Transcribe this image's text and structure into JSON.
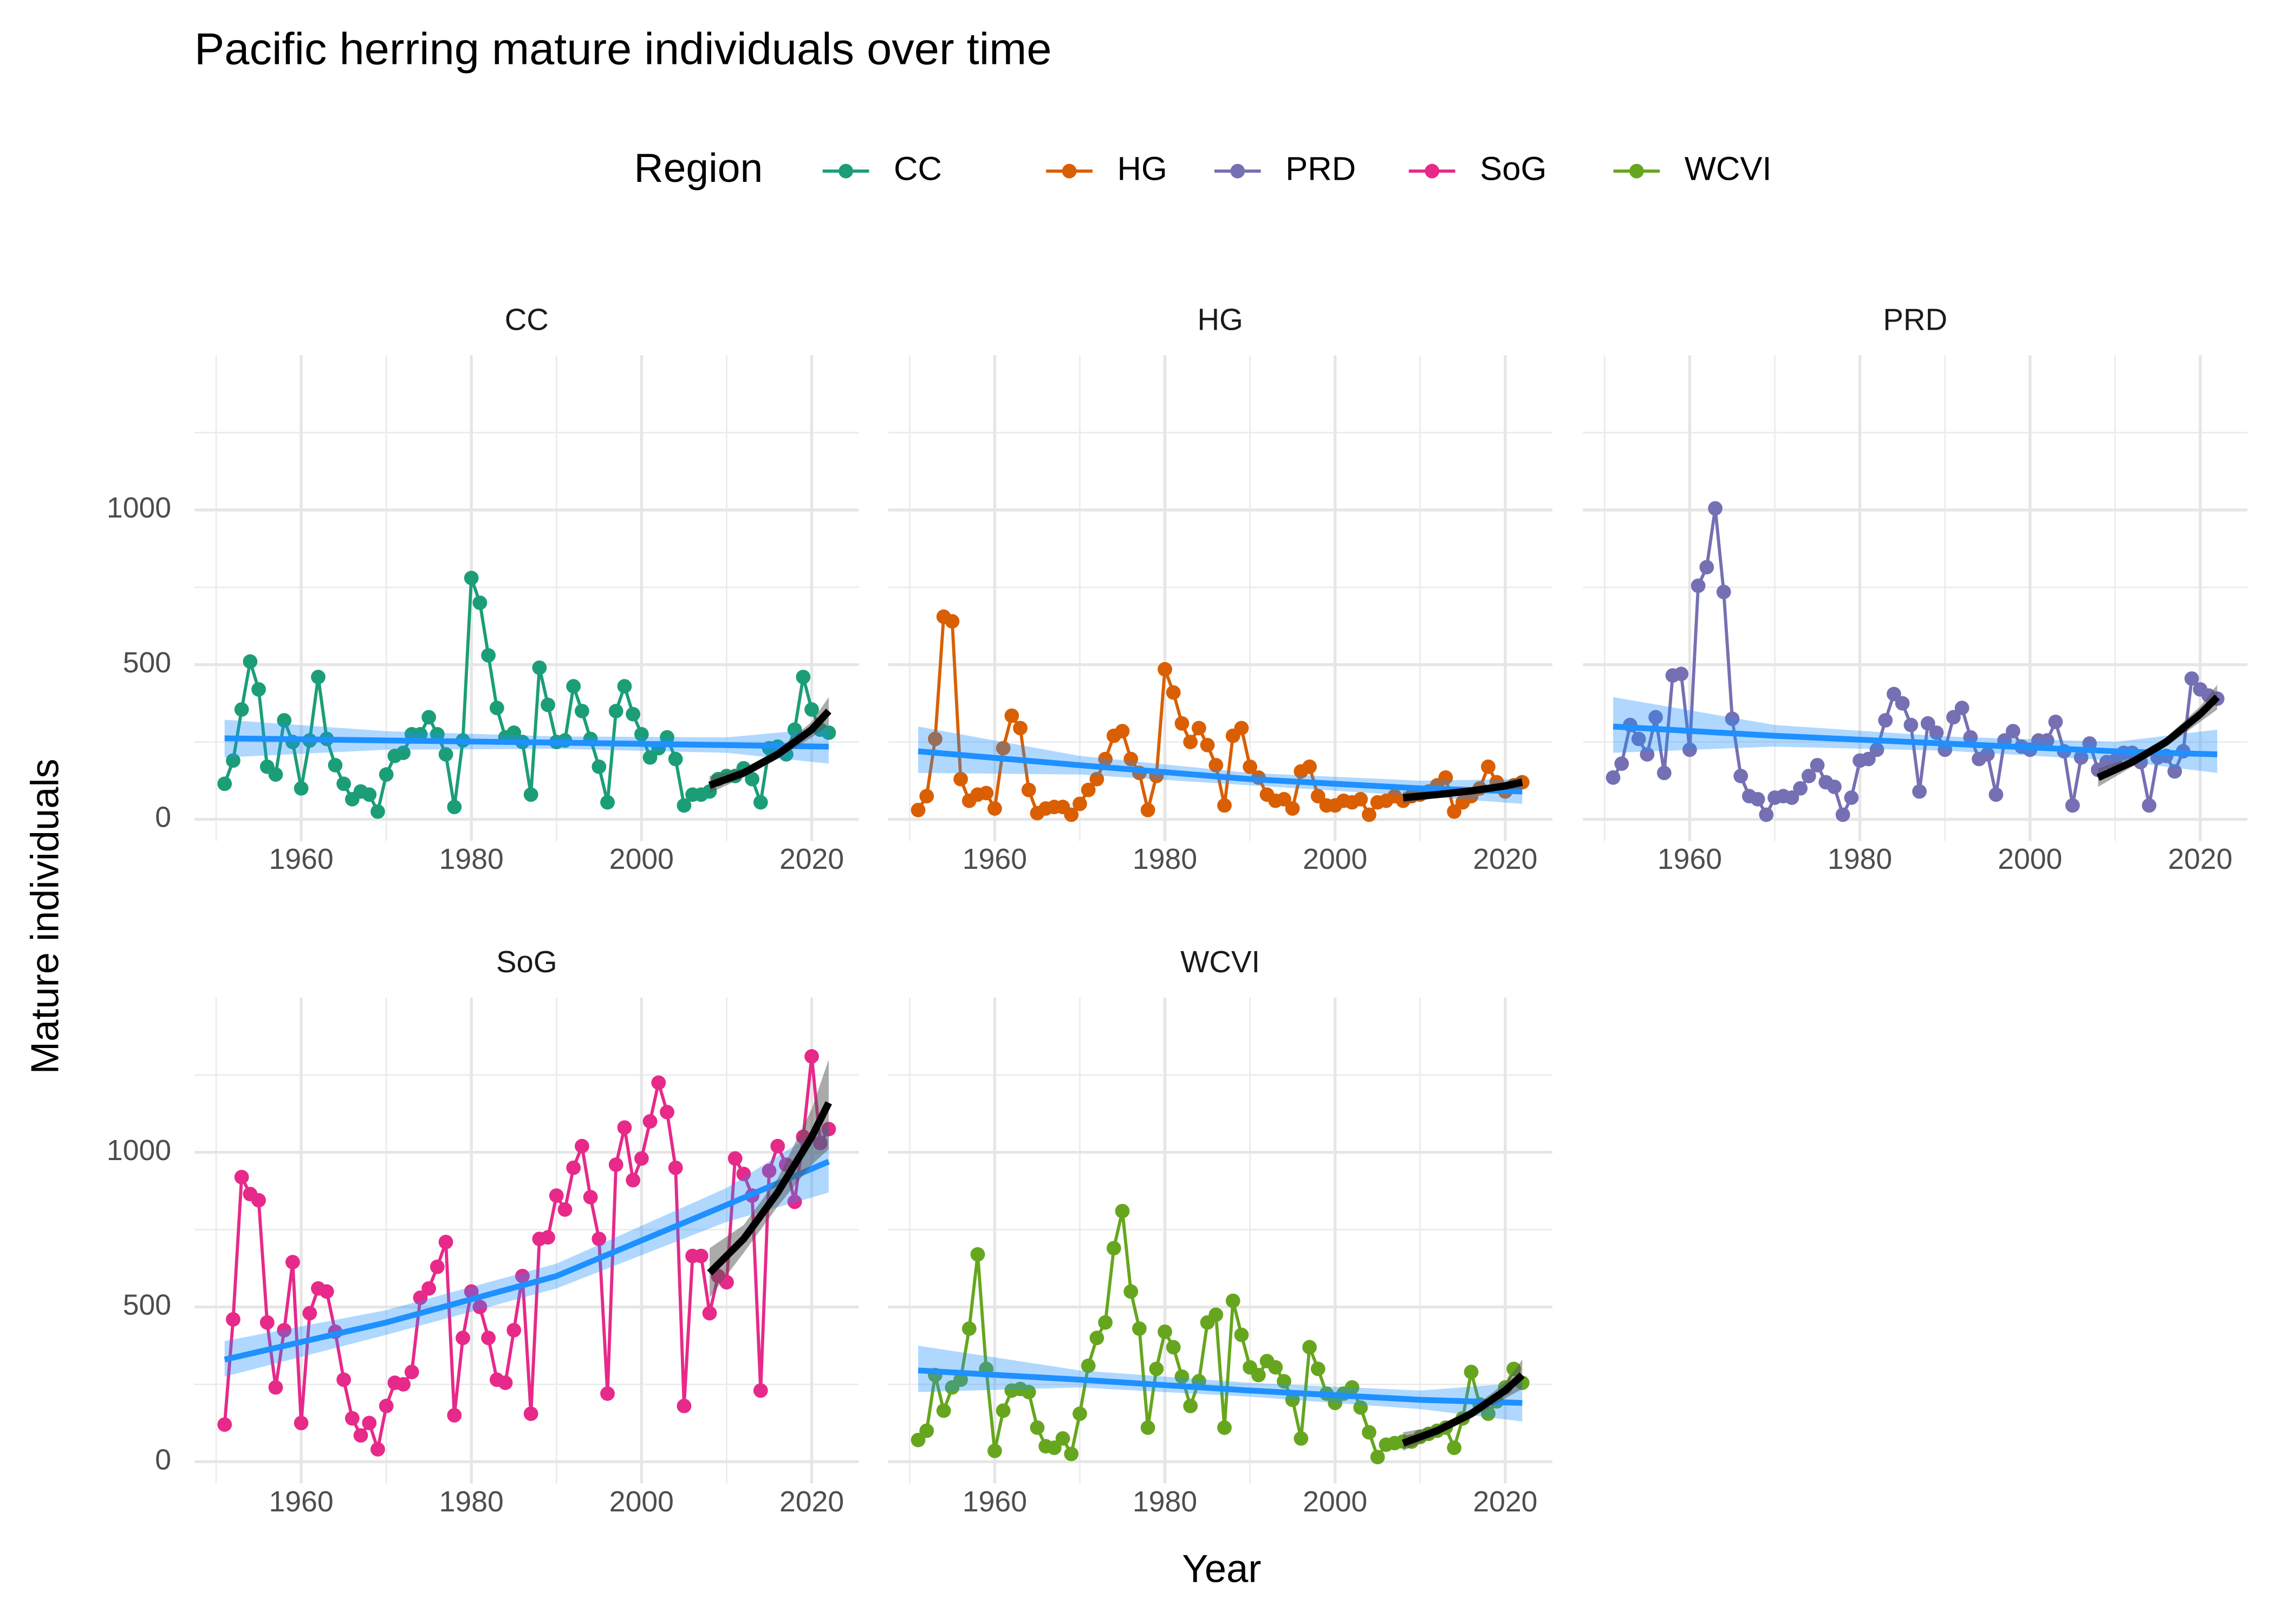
{
  "chart_data": {
    "type": "line",
    "title": "Pacific herring mature individuals over time",
    "x_label": "Year",
    "y_label": "Mature individuals",
    "legend_title": "Region",
    "legend_position": "top",
    "grid": true,
    "xlim": [
      1947.45,
      2025.55
    ],
    "xticks": [
      1960,
      1980,
      2000,
      2020
    ],
    "ylim": [
      -70,
      1500
    ],
    "yticks": [
      0,
      500,
      1000
    ],
    "trend_color": "#1e90ff",
    "recent_trend_color": "#000000",
    "x": [
      1951,
      1952,
      1953,
      1954,
      1955,
      1956,
      1957,
      1958,
      1959,
      1960,
      1961,
      1962,
      1963,
      1964,
      1965,
      1966,
      1967,
      1968,
      1969,
      1970,
      1971,
      1972,
      1973,
      1974,
      1975,
      1976,
      1977,
      1978,
      1979,
      1980,
      1981,
      1982,
      1983,
      1984,
      1985,
      1986,
      1987,
      1988,
      1989,
      1990,
      1991,
      1992,
      1993,
      1994,
      1995,
      1996,
      1997,
      1998,
      1999,
      2000,
      2001,
      2002,
      2003,
      2004,
      2005,
      2006,
      2007,
      2008,
      2009,
      2010,
      2011,
      2012,
      2013,
      2014,
      2015,
      2016,
      2017,
      2018,
      2019,
      2020,
      2021,
      2022
    ],
    "trend_x": [
      1951,
      1970,
      1990,
      2010,
      2022
    ],
    "recent_x": [
      2008,
      2012,
      2016,
      2020,
      2022
    ],
    "series": [
      {
        "name": "CC",
        "color": "#1b9e77",
        "values": [
          115,
          190,
          355,
          510,
          420,
          170,
          145,
          320,
          250,
          100,
          255,
          460,
          260,
          175,
          115,
          65,
          90,
          80,
          25,
          145,
          205,
          215,
          275,
          275,
          330,
          275,
          210,
          40,
          255,
          780,
          700,
          530,
          360,
          265,
          280,
          250,
          80,
          490,
          370,
          250,
          255,
          430,
          350,
          260,
          170,
          55,
          350,
          430,
          340,
          275,
          200,
          230,
          265,
          195,
          45,
          80,
          80,
          90,
          130,
          140,
          140,
          165,
          130,
          55,
          230,
          235,
          210,
          290,
          460,
          355,
          290,
          280
        ],
        "trend": [
          262,
          255,
          248,
          240,
          235
        ],
        "trend_lower": [
          200,
          225,
          228,
          215,
          180
        ],
        "trend_upper": [
          322,
          285,
          268,
          265,
          295
        ],
        "recent": [
          110,
          150,
          210,
          290,
          350
        ],
        "recent_lower": [
          85,
          135,
          195,
          265,
          305
        ],
        "recent_upper": [
          140,
          165,
          225,
          315,
          395
        ]
      },
      {
        "name": "HG",
        "color": "#d95f02",
        "values": [
          30,
          75,
          260,
          655,
          640,
          130,
          60,
          80,
          85,
          35,
          230,
          335,
          295,
          95,
          20,
          35,
          40,
          40,
          15,
          50,
          95,
          130,
          195,
          270,
          285,
          195,
          150,
          30,
          140,
          485,
          410,
          310,
          250,
          295,
          240,
          175,
          45,
          270,
          295,
          170,
          135,
          80,
          60,
          65,
          35,
          155,
          170,
          75,
          45,
          45,
          60,
          55,
          65,
          15,
          55,
          60,
          75,
          60,
          75,
          80,
          90,
          110,
          135,
          25,
          55,
          75,
          100,
          170,
          120,
          90,
          110,
          120
        ],
        "trend": [
          220,
          175,
          130,
          100,
          90
        ],
        "trend_lower": [
          150,
          145,
          110,
          75,
          50
        ],
        "trend_upper": [
          300,
          205,
          150,
          125,
          130
        ],
        "recent": [
          70,
          80,
          92,
          108,
          120
        ],
        "recent_lower": [
          50,
          70,
          85,
          95,
          100
        ],
        "recent_upper": [
          90,
          90,
          100,
          122,
          142
        ]
      },
      {
        "name": "PRD",
        "color": "#7570b3",
        "values": [
          135,
          180,
          305,
          260,
          210,
          330,
          150,
          465,
          470,
          225,
          755,
          815,
          1005,
          735,
          325,
          140,
          75,
          65,
          15,
          70,
          75,
          70,
          100,
          140,
          175,
          120,
          105,
          15,
          70,
          190,
          195,
          225,
          320,
          405,
          375,
          305,
          90,
          310,
          280,
          225,
          330,
          360,
          265,
          195,
          210,
          80,
          255,
          285,
          235,
          225,
          255,
          255,
          315,
          220,
          45,
          200,
          245,
          160,
          185,
          190,
          215,
          215,
          185,
          45,
          200,
          205,
          155,
          220,
          455,
          420,
          400,
          390
        ],
        "trend": [
          300,
          270,
          245,
          220,
          210
        ],
        "trend_lower": [
          215,
          235,
          222,
          190,
          150
        ],
        "trend_upper": [
          395,
          305,
          268,
          250,
          290
        ],
        "recent": [
          135,
          185,
          250,
          340,
          395
        ],
        "recent_lower": [
          105,
          170,
          235,
          315,
          355
        ],
        "recent_upper": [
          165,
          200,
          265,
          365,
          435
        ]
      },
      {
        "name": "SoG",
        "color": "#e7298a",
        "values": [
          120,
          460,
          920,
          865,
          845,
          450,
          240,
          425,
          645,
          125,
          480,
          560,
          550,
          420,
          265,
          140,
          85,
          125,
          40,
          180,
          255,
          250,
          290,
          530,
          560,
          630,
          710,
          150,
          400,
          550,
          500,
          400,
          265,
          255,
          425,
          600,
          155,
          720,
          725,
          860,
          815,
          950,
          1020,
          855,
          720,
          220,
          960,
          1080,
          910,
          980,
          1100,
          1225,
          1130,
          950,
          180,
          665,
          665,
          480,
          600,
          580,
          980,
          930,
          860,
          230,
          940,
          1020,
          960,
          840,
          1050,
          1310,
          1030,
          1075
        ],
        "trend": [
          330,
          450,
          600,
          830,
          970
        ],
        "trend_lower": [
          275,
          410,
          560,
          775,
          870
        ],
        "trend_upper": [
          390,
          490,
          640,
          885,
          1090
        ],
        "recent": [
          610,
          720,
          870,
          1050,
          1160
        ],
        "recent_lower": [
          530,
          675,
          825,
          960,
          1010
        ],
        "recent_upper": [
          690,
          765,
          915,
          1140,
          1300
        ]
      },
      {
        "name": "WCVI",
        "color": "#66a61e",
        "values": [
          70,
          100,
          280,
          165,
          240,
          265,
          430,
          670,
          300,
          35,
          165,
          230,
          235,
          225,
          110,
          50,
          45,
          75,
          25,
          155,
          310,
          400,
          450,
          690,
          810,
          550,
          430,
          110,
          300,
          420,
          370,
          275,
          180,
          260,
          450,
          475,
          110,
          520,
          410,
          305,
          280,
          325,
          305,
          260,
          200,
          75,
          370,
          300,
          220,
          190,
          220,
          240,
          175,
          95,
          15,
          55,
          60,
          65,
          65,
          80,
          90,
          100,
          110,
          45,
          140,
          290,
          185,
          155,
          195,
          240,
          300,
          255
        ],
        "trend": [
          295,
          265,
          230,
          200,
          190
        ],
        "trend_lower": [
          225,
          240,
          210,
          170,
          130
        ],
        "trend_upper": [
          375,
          295,
          255,
          230,
          255
        ],
        "recent": [
          60,
          100,
          155,
          230,
          280
        ],
        "recent_lower": [
          35,
          85,
          140,
          205,
          235
        ],
        "recent_upper": [
          95,
          115,
          170,
          255,
          330
        ]
      }
    ]
  }
}
